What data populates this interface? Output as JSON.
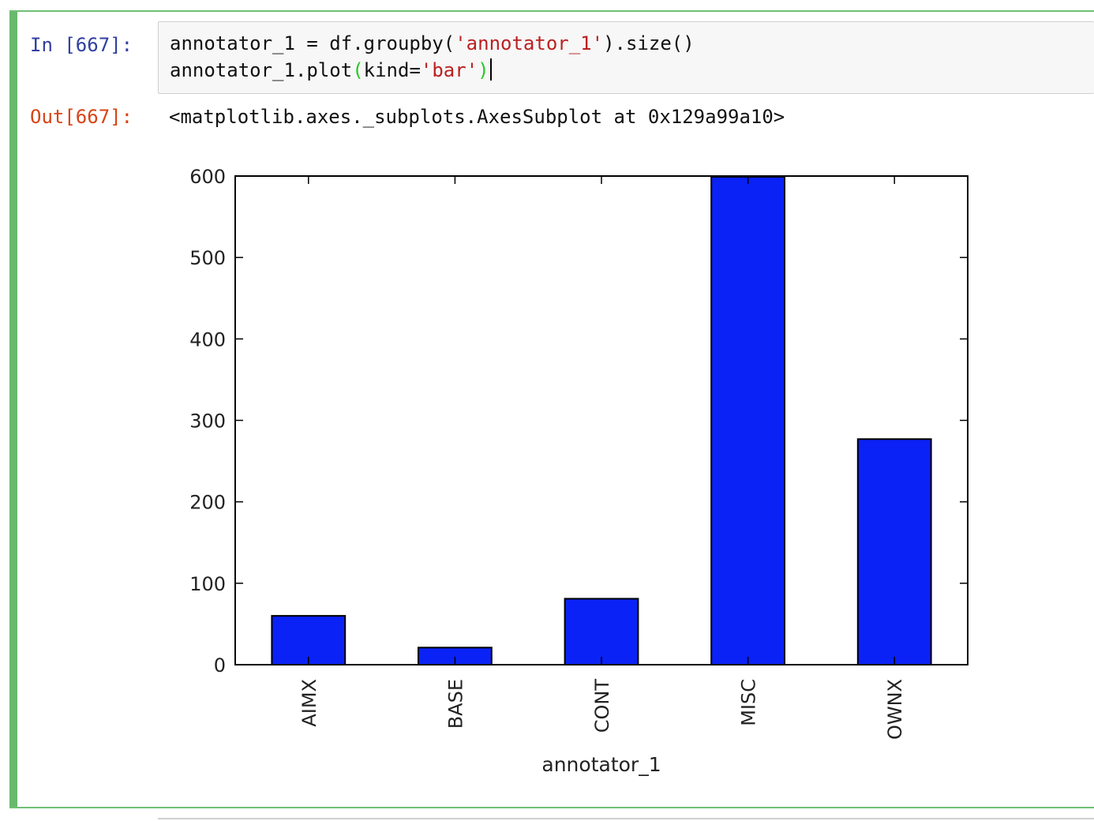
{
  "cell": {
    "in_prompt": "In [667]:",
    "code_lines": [
      {
        "a": "annotator_1 = df.groupby(",
        "s": "'annotator_1'",
        "b": ").size()"
      },
      {
        "a": "annotator_1.plot",
        "p1": "(",
        "k": "kind=",
        "s": "'bar'",
        "p2": ")"
      }
    ],
    "out_prompt": "Out[667]:",
    "out_text": "<matplotlib.axes._subplots.AxesSubplot at 0x129a99a10>"
  },
  "colors": {
    "bar_fill": "#0a22f5",
    "cell_border": "#69b96d",
    "in_prompt": "#303f9f",
    "out_prompt": "#d84315",
    "string": "#ba2121",
    "matched_paren": "#22cc22"
  },
  "chart_data": {
    "type": "bar",
    "categories": [
      "AIMX",
      "BASE",
      "CONT",
      "MISC",
      "OWNX"
    ],
    "values": [
      60,
      21,
      81,
      599,
      277
    ],
    "xlabel": "annotator_1",
    "ylabel": "",
    "ylim": [
      0,
      600
    ],
    "yticks": [
      0,
      100,
      200,
      300,
      400,
      500,
      600
    ],
    "grid": false,
    "legend": false
  }
}
